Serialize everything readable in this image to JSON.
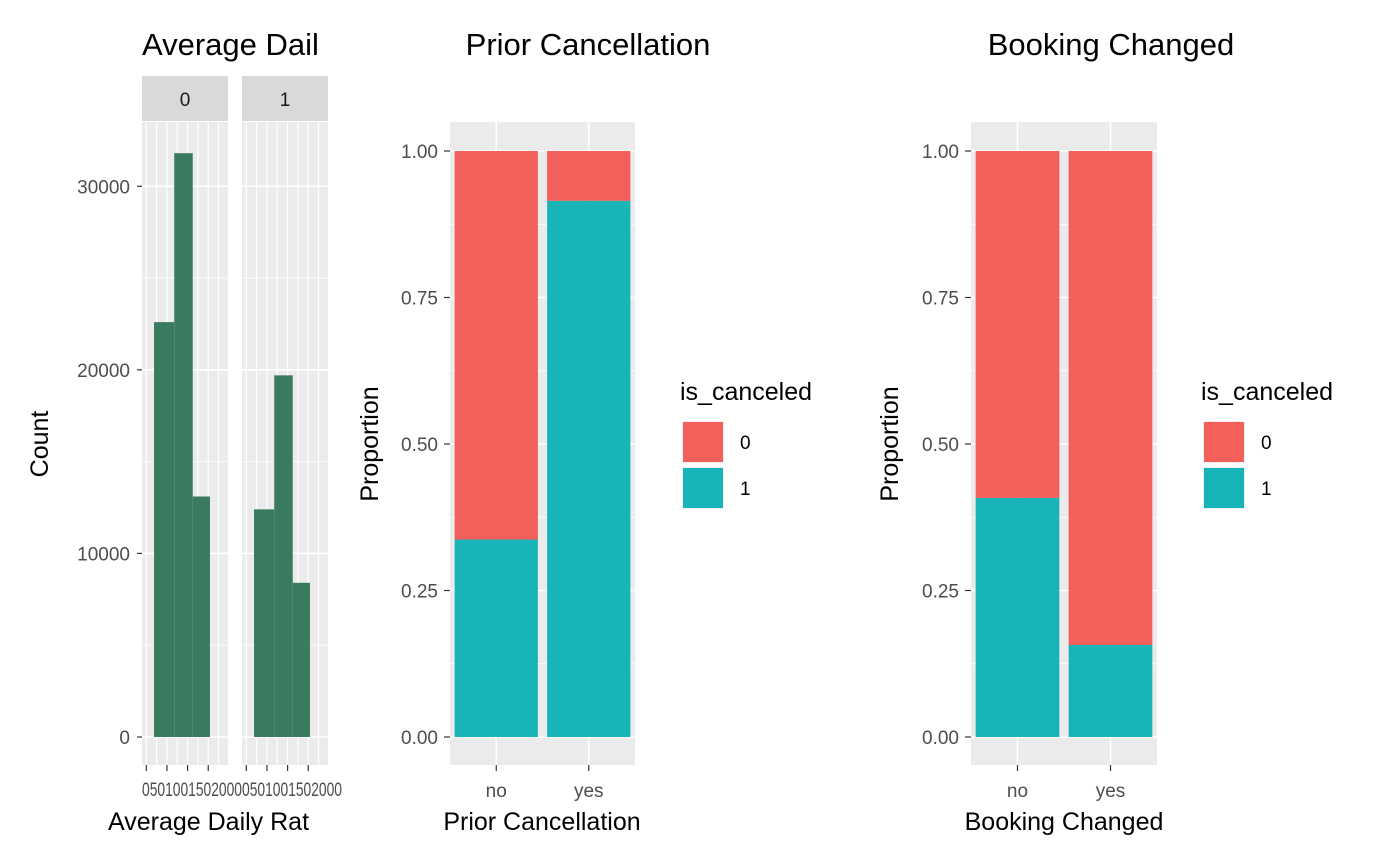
{
  "chart_data": [
    {
      "type": "bar",
      "subtype": "faceted-histogram",
      "title": "Average Dail",
      "xlabel": "Average Daily Rat",
      "ylabel": "Count",
      "ylim": [
        0,
        33500
      ],
      "yticks": [
        0,
        10000,
        20000,
        30000
      ],
      "y_tick_labels": [
        "0",
        "10000",
        "20000",
        "30000"
      ],
      "x_tick_label_text": "0501001502000",
      "bar_color": "#3a7a5e",
      "grid": true,
      "facets": [
        {
          "label": "0",
          "bins": [
            "0-50",
            "50-100",
            "100-150"
          ],
          "values": [
            22600,
            31800,
            13100
          ]
        },
        {
          "label": "1",
          "bins": [
            "0-50",
            "50-100",
            "100-150"
          ],
          "values": [
            12400,
            19700,
            8400
          ]
        }
      ]
    },
    {
      "type": "bar",
      "subtype": "stacked-proportion",
      "title": "Prior Cancellation",
      "xlabel": "Prior Cancellation",
      "ylabel": "Proportion",
      "categories": [
        "no",
        "yes"
      ],
      "ylim": [
        0,
        1.05
      ],
      "yticks": [
        "0.00",
        "0.25",
        "0.50",
        "0.75",
        "1.00"
      ],
      "series": [
        {
          "name": "0",
          "color": "#f35f5a",
          "values": [
            0.663,
            0.085
          ]
        },
        {
          "name": "1",
          "color": "#19b4b8",
          "values": [
            0.337,
            0.915
          ]
        }
      ],
      "legend": {
        "title": "is_canceled",
        "position": "right"
      },
      "grid": true
    },
    {
      "type": "bar",
      "subtype": "stacked-proportion",
      "title": "Booking Changed",
      "xlabel": "Booking Changed",
      "ylabel": "Proportion",
      "categories": [
        "no",
        "yes"
      ],
      "ylim": [
        0,
        1.05
      ],
      "yticks": [
        "0.00",
        "0.25",
        "0.50",
        "0.75",
        "1.00"
      ],
      "series": [
        {
          "name": "0",
          "color": "#f35f5a",
          "values": [
            0.592,
            0.843
          ]
        },
        {
          "name": "1",
          "color": "#19b4b8",
          "values": [
            0.408,
            0.157
          ]
        }
      ],
      "legend": {
        "title": "is_canceled",
        "position": "right"
      },
      "grid": true
    }
  ]
}
